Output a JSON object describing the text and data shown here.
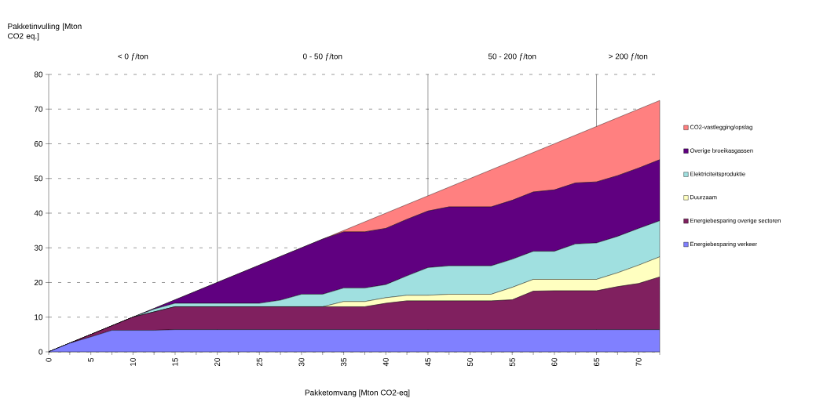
{
  "chart_data": {
    "type": "area",
    "stacked": true,
    "xlabel": "Pakketomvang [Mton CO2-eq]",
    "ylabel": "Pakketinvulling [Mton CO2 eq.]",
    "x": [
      0,
      2.5,
      5,
      7.5,
      10,
      12.5,
      15,
      17.5,
      20,
      22.5,
      25,
      27.5,
      30,
      32.5,
      35,
      37.5,
      40,
      42.5,
      45,
      47.5,
      50,
      52.5,
      55,
      57.5,
      60,
      62.5,
      65,
      67.5,
      70,
      72.5
    ],
    "series": [
      {
        "name": "Energiebesparing verkeer",
        "color": "#8080ff",
        "values": [
          0,
          2.5,
          4.3,
          6.2,
          6.2,
          6.2,
          6.4,
          6.4,
          6.4,
          6.4,
          6.4,
          6.4,
          6.4,
          6.4,
          6.4,
          6.4,
          6.4,
          6.4,
          6.4,
          6.4,
          6.4,
          6.4,
          6.4,
          6.4,
          6.4,
          6.4,
          6.4,
          6.4,
          6.4,
          6.4
        ]
      },
      {
        "name": "Energiebesparing overige sectoren",
        "color": "#80205f",
        "values": [
          0,
          0,
          0.7,
          1.3,
          3.8,
          5.3,
          6.6,
          6.6,
          6.6,
          6.6,
          6.6,
          6.6,
          6.6,
          6.6,
          6.6,
          6.6,
          7.6,
          8.3,
          8.3,
          8.3,
          8.3,
          8.3,
          8.6,
          11.1,
          11.2,
          11.2,
          11.2,
          12.4,
          13.3,
          15.2
        ]
      },
      {
        "name": "Duurzaam",
        "color": "#ffffc0",
        "values": [
          0,
          0,
          0,
          0,
          0,
          0,
          0,
          0,
          0,
          0,
          0,
          0,
          0,
          0,
          1.5,
          1.5,
          1.6,
          1.6,
          1.6,
          1.9,
          1.9,
          1.9,
          3.6,
          3.4,
          3.3,
          3.3,
          3.3,
          4.0,
          5.3,
          5.8
        ]
      },
      {
        "name": "Elektriciteitsproduktie",
        "color": "#a0e0e0",
        "values": [
          0,
          0,
          0,
          0,
          0,
          0.8,
          1.0,
          1.0,
          1.0,
          1.0,
          1.0,
          1.9,
          3.6,
          3.6,
          3.9,
          3.9,
          3.8,
          5.6,
          8.0,
          8.2,
          8.2,
          8.2,
          8.1,
          8.1,
          8.1,
          10.2,
          10.5,
          10.5,
          10.6,
          10.4
        ]
      },
      {
        "name": "Overige broeikasgassen",
        "color": "#600080",
        "values": [
          0,
          0,
          0,
          0,
          0,
          0.2,
          1.0,
          3.5,
          6.0,
          8.5,
          11.0,
          12.6,
          13.4,
          15.9,
          16.2,
          16.2,
          16.2,
          16.3,
          16.3,
          17.0,
          17.0,
          17.0,
          17.0,
          17.1,
          17.7,
          17.6,
          17.6,
          17.5,
          17.4,
          17.6
        ]
      },
      {
        "name": "CO2-vastlegging/opslag",
        "color": "#ff8080",
        "values": [
          0,
          0,
          0,
          0,
          0,
          0,
          0,
          0,
          0,
          0,
          0,
          0,
          0,
          0,
          0.4,
          2.9,
          4.4,
          4.3,
          4.4,
          5.7,
          8.2,
          10.7,
          11.3,
          11.4,
          13.3,
          13.8,
          16.0,
          16.7,
          17.0,
          17.1
        ]
      }
    ],
    "xlim": [
      0,
      72.5
    ],
    "xticks": [
      0,
      {
        "value": 2.5,
        "label": null
      },
      5,
      {
        "value": 7.5,
        "label": null
      },
      10,
      {
        "value": 12.5,
        "label": null
      },
      15,
      {
        "value": 17.5,
        "label": null
      },
      20,
      {
        "value": 22.5,
        "label": null
      },
      25,
      {
        "value": 27.5,
        "label": null
      },
      30,
      {
        "value": 32.5,
        "label": null
      },
      35,
      {
        "value": 37.5,
        "label": null
      },
      40,
      {
        "value": 42.5,
        "label": null
      },
      45,
      {
        "value": 47.5,
        "label": null
      },
      50,
      {
        "value": 52.5,
        "label": null
      },
      55,
      {
        "value": 57.5,
        "label": null
      },
      60,
      {
        "value": 62.5,
        "label": null
      },
      65,
      {
        "value": 67.5,
        "label": null
      },
      70,
      {
        "value": 72.5,
        "label": null
      }
    ],
    "ylim": [
      0,
      80
    ],
    "yticks": [
      0,
      10,
      20,
      30,
      40,
      50,
      60,
      70,
      80
    ],
    "grid": "y",
    "legend": "right",
    "ref_lines": [
      {
        "axis": "x",
        "value": 20
      },
      {
        "axis": "x",
        "value": 45
      },
      {
        "axis": "x",
        "value": 65
      }
    ],
    "annotations": [
      "< 0 ƒ/ton",
      "0 - 50 ƒ/ton",
      "50 - 200 ƒ/ton",
      "> 200 ƒ/ton"
    ]
  }
}
